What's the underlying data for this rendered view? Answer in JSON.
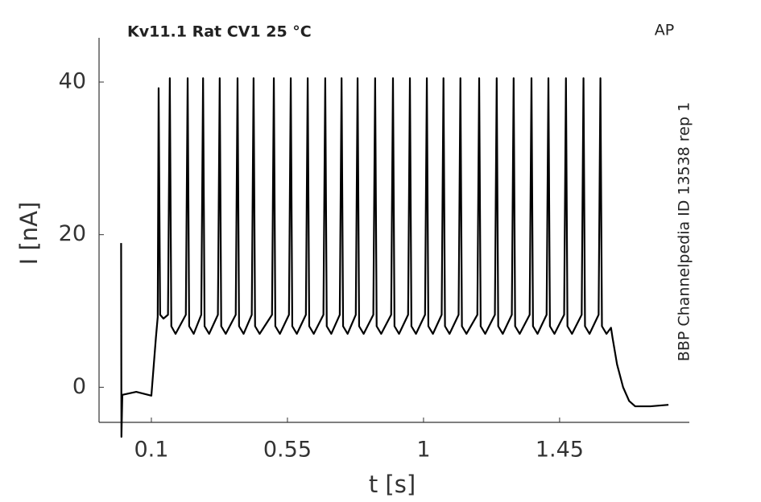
{
  "chart_data": {
    "type": "line",
    "title": "Kv11.1  Rat  CV1  25 °C",
    "corner_label": "AP",
    "side_label": "BBP Channelpedia ID 13538 rep 1",
    "x_label": "t [s]",
    "y_label": "I [nA]",
    "color": "#000000",
    "grid": false,
    "xlim": [
      -0.073,
      1.879
    ],
    "ylim": [
      -4.6,
      45.8
    ],
    "xticks": [
      0.1,
      0.55,
      1,
      1.45
    ],
    "yticks": [
      0,
      20,
      40
    ],
    "x": [
      0,
      0.001,
      0.004,
      0.05,
      0.1,
      0.115,
      0.121,
      0.124,
      0.129,
      0.14,
      0.155,
      0.161,
      0.166,
      0.18,
      0.214,
      0.22,
      0.225,
      0.24,
      0.265,
      0.271,
      0.276,
      0.291,
      0.32,
      0.326,
      0.331,
      0.346,
      0.379,
      0.385,
      0.39,
      0.405,
      0.432,
      0.438,
      0.443,
      0.458,
      0.499,
      0.505,
      0.51,
      0.525,
      0.555,
      0.561,
      0.566,
      0.581,
      0.611,
      0.617,
      0.622,
      0.637,
      0.669,
      0.675,
      0.68,
      0.695,
      0.723,
      0.729,
      0.734,
      0.749,
      0.776,
      0.782,
      0.787,
      0.802,
      0.834,
      0.84,
      0.845,
      0.86,
      0.893,
      0.899,
      0.904,
      0.919,
      0.949,
      0.955,
      0.96,
      0.975,
      1.005,
      1.011,
      1.016,
      1.031,
      1.06,
      1.066,
      1.071,
      1.086,
      1.116,
      1.122,
      1.127,
      1.142,
      1.178,
      1.184,
      1.189,
      1.204,
      1.236,
      1.242,
      1.247,
      1.262,
      1.292,
      1.298,
      1.303,
      1.318,
      1.351,
      1.357,
      1.362,
      1.377,
      1.407,
      1.413,
      1.418,
      1.433,
      1.465,
      1.471,
      1.476,
      1.491,
      1.523,
      1.529,
      1.534,
      1.549,
      1.579,
      1.585,
      1.59,
      1.605,
      1.62,
      1.625,
      1.64,
      1.66,
      1.68,
      1.7,
      1.75,
      1.81
    ],
    "values": [
      18.9,
      -6.5,
      -1,
      -0.6,
      -1.1,
      6.5,
      9.2,
      39.2,
      9.5,
      9,
      9.5,
      40.5,
      8,
      7,
      9.5,
      40.5,
      8,
      7,
      9.5,
      40.5,
      8,
      7,
      9.5,
      40.5,
      8,
      7,
      9.5,
      40.5,
      8,
      7,
      9.5,
      40.5,
      8,
      7,
      9.5,
      40.5,
      8,
      7,
      9.5,
      40.5,
      8,
      7,
      9.5,
      40.5,
      8,
      7,
      9.5,
      40.5,
      8,
      7,
      9.5,
      40.5,
      8,
      7,
      9.5,
      40.5,
      8,
      7,
      9.5,
      40.5,
      8,
      7,
      9.5,
      40.5,
      8,
      7,
      9.5,
      40.5,
      8,
      7,
      9.5,
      40.5,
      8,
      7,
      9.5,
      40.5,
      8,
      7,
      9.5,
      40.5,
      8,
      7,
      9.5,
      40.5,
      8,
      7,
      9.5,
      40.5,
      8,
      7,
      9.5,
      40.5,
      8,
      7,
      9.5,
      40.5,
      8,
      7,
      9.5,
      40.5,
      8,
      7,
      9.5,
      40.5,
      8,
      7,
      9.5,
      40.5,
      8,
      7,
      9.5,
      40.5,
      8,
      7,
      7.8,
      6.5,
      3,
      0,
      -1.8,
      -2.5,
      -2.5,
      -2.3
    ]
  }
}
